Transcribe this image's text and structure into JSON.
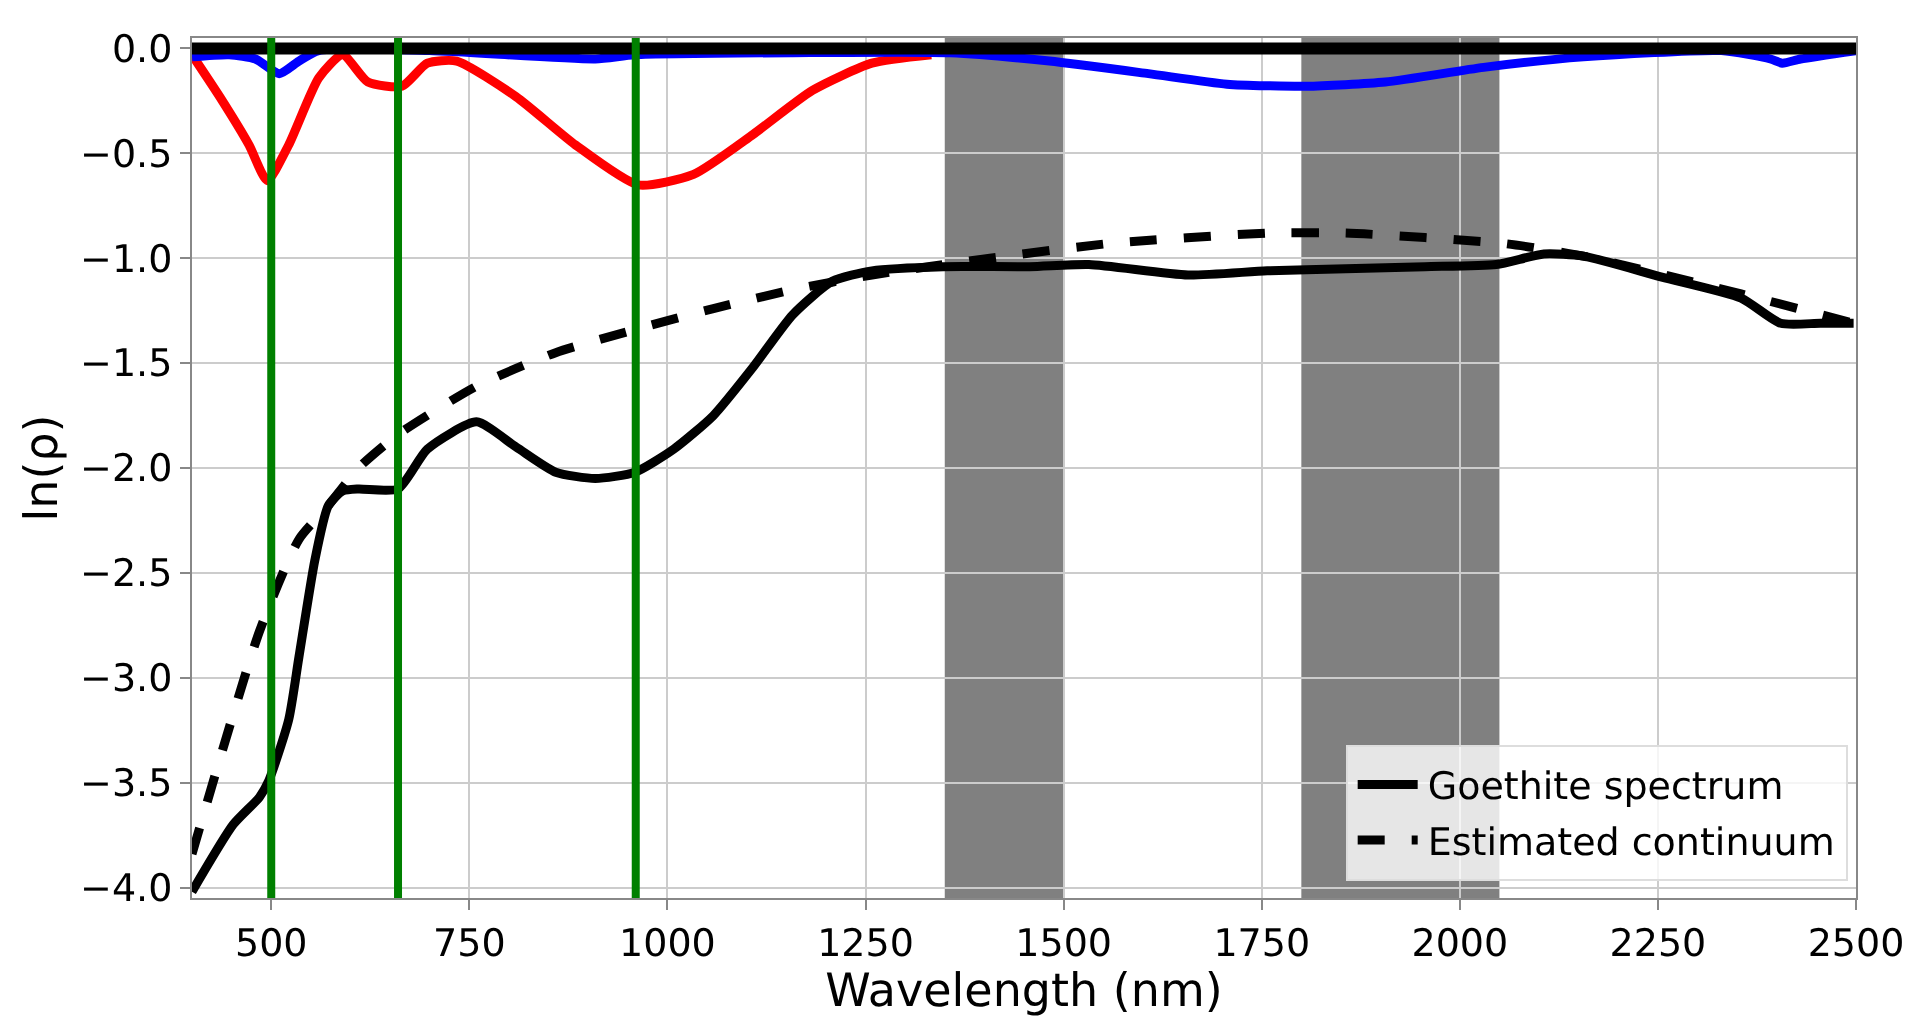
{
  "chart_data": {
    "type": "line",
    "xlabel": "Wavelength (nm)",
    "ylabel": "ln(ρ)",
    "xlim": [
      400,
      2500
    ],
    "ylim": [
      -4.05,
      0.05
    ],
    "xticks": [
      500,
      750,
      1000,
      1250,
      1500,
      1750,
      2000,
      2250,
      2500
    ],
    "yticks": [
      {
        "value": 0,
        "label": "0.0"
      },
      {
        "value": -0.5,
        "label": "−0.5"
      },
      {
        "value": -1,
        "label": "−1.0"
      },
      {
        "value": -1.5,
        "label": "−1.5"
      },
      {
        "value": -2,
        "label": "−2.0"
      },
      {
        "value": -2.5,
        "label": "−2.5"
      },
      {
        "value": -3,
        "label": "−3.0"
      },
      {
        "value": -3.5,
        "label": "−3.5"
      },
      {
        "value": -4,
        "label": "−4.0"
      }
    ],
    "grid": true,
    "legend": "bottom right",
    "series": [
      {
        "name": "Goethite spectrum",
        "color": "#000000",
        "line_style": "solid",
        "x": [
          400,
          452,
          485,
          497,
          522,
          535,
          555,
          572,
          590,
          610,
          660,
          697,
          759,
          809,
          859,
          909,
          959,
          1008,
          1058,
          1108,
          1158,
          1208,
          1258,
          1348,
          1457,
          1532,
          1657,
          1757,
          1856,
          1956,
          2046,
          2106,
          2156,
          2255,
          2355,
          2405,
          2455,
          2497
        ],
        "values": [
          -4.02,
          -3.7,
          -3.57,
          -3.49,
          -3.2,
          -2.9,
          -2.44,
          -2.18,
          -2.11,
          -2.1,
          -2.1,
          -1.91,
          -1.78,
          -1.9,
          -2.02,
          -2.05,
          -2.02,
          -1.91,
          -1.75,
          -1.52,
          -1.27,
          -1.11,
          -1.06,
          -1.04,
          -1.04,
          -1.03,
          -1.08,
          -1.06,
          -1.05,
          -1.04,
          -1.03,
          -0.98,
          -0.99,
          -1.09,
          -1.19,
          -1.31,
          -1.31,
          -1.31
        ]
      },
      {
        "name": "Estimated continuum",
        "color": "#000000",
        "line_style": "dashed",
        "x": [
          400,
          485,
          535,
          572,
          610,
          660,
          759,
          859,
          959,
          1058,
          1158,
          1258,
          1407,
          1557,
          1757,
          1856,
          2056,
          2156,
          2355,
          2497
        ],
        "values": [
          -3.84,
          -2.78,
          -2.34,
          -2.18,
          -2.0,
          -1.84,
          -1.61,
          -1.45,
          -1.34,
          -1.24,
          -1.15,
          -1.08,
          -1.0,
          -0.93,
          -0.88,
          -0.88,
          -0.93,
          -0.99,
          -1.17,
          -1.31
        ]
      },
      {
        "color": "#ff0000",
        "line_style": "solid",
        "x": [
          400,
          435,
          472,
          495,
          522,
          560,
          590,
          622,
          665,
          697,
          734,
          809,
          884,
          963,
          1033,
          1108,
          1183,
          1258,
          1333
        ],
        "values": [
          -0.03,
          -0.23,
          -0.46,
          -0.63,
          -0.46,
          -0.14,
          -0.03,
          -0.16,
          -0.18,
          -0.07,
          -0.06,
          -0.23,
          -0.46,
          -0.65,
          -0.6,
          -0.41,
          -0.2,
          -0.07,
          -0.03
        ]
      },
      {
        "color": "#0000ff",
        "line_style": "solid",
        "x": [
          400,
          447,
          480,
          510,
          535,
          560,
          700,
          909,
          959,
          1158,
          1357,
          1482,
          1607,
          1706,
          1806,
          1906,
          2030,
          2156,
          2330,
          2392,
          2407,
          2430,
          2500
        ],
        "values": [
          -0.04,
          -0.03,
          -0.05,
          -0.12,
          -0.06,
          -0.01,
          -0.01,
          -0.05,
          -0.03,
          -0.02,
          -0.02,
          -0.06,
          -0.12,
          -0.17,
          -0.18,
          -0.16,
          -0.09,
          -0.04,
          -0.01,
          -0.05,
          -0.07,
          -0.05,
          -0.01
        ]
      }
    ],
    "ref_lines": [
      {
        "axis": "y",
        "value": 0,
        "color": "#000000"
      },
      {
        "axis": "x",
        "value": 500,
        "color": "#008000"
      },
      {
        "axis": "x",
        "value": 660,
        "color": "#008000"
      },
      {
        "axis": "x",
        "value": 960,
        "color": "#008000"
      }
    ],
    "bands": [
      {
        "axis": "x",
        "from": 1350,
        "to": 1500,
        "color": "#808080"
      },
      {
        "axis": "x",
        "from": 1800,
        "to": 2050,
        "color": "#808080"
      }
    ]
  }
}
